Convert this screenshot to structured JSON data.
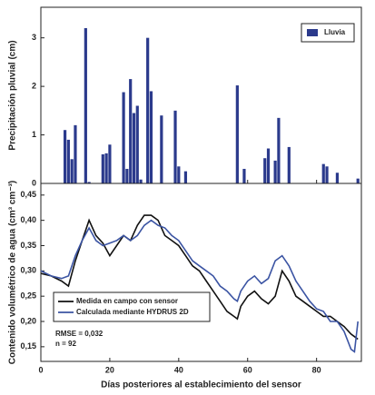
{
  "chart_data": [
    {
      "type": "bar",
      "ylabel": "Precipitación pluvial (cm)",
      "x": [
        7,
        8,
        9,
        10,
        13,
        14,
        18,
        19,
        20,
        24,
        25,
        26,
        27,
        28,
        29,
        31,
        32,
        35,
        39,
        40,
        42,
        57,
        59,
        65,
        66,
        68,
        69,
        72,
        82,
        83,
        86,
        92
      ],
      "series": [
        {
          "name": "Lluvia",
          "color": "#2b3a8c",
          "values": [
            1.1,
            0.9,
            0.5,
            1.2,
            3.2,
            0.03,
            0.6,
            0.62,
            0.8,
            1.88,
            0.3,
            2.15,
            1.45,
            1.6,
            0.08,
            3.0,
            1.9,
            1.4,
            1.5,
            0.35,
            0.25,
            2.02,
            0.3,
            0.52,
            0.72,
            0.47,
            1.35,
            0.75,
            0.4,
            0.35,
            0.22,
            0.1
          ]
        }
      ],
      "xlim": [
        0,
        93
      ],
      "xticks": [
        0,
        20,
        40,
        60,
        80
      ],
      "ylim": [
        0,
        3.63
      ],
      "yticks": [
        0,
        1,
        2,
        3
      ],
      "legend": "upper right"
    },
    {
      "type": "line",
      "xlabel": "Días posteriores al establecimiento del sensor",
      "ylabel": "Contenido volumétrico de agua (cm³ cm⁻³)",
      "x": [
        0,
        3,
        6,
        8,
        10,
        12,
        14,
        16,
        18,
        20,
        22,
        24,
        26,
        28,
        30,
        32,
        34,
        36,
        38,
        40,
        42,
        44,
        46,
        48,
        50,
        52,
        54,
        56,
        57,
        58,
        60,
        62,
        64,
        66,
        68,
        70,
        72,
        74,
        76,
        78,
        80,
        82,
        84,
        86,
        88,
        90,
        91,
        92
      ],
      "series": [
        {
          "name": "Medida en campo con sensor",
          "color": "#111111",
          "values": [
            0.295,
            0.29,
            0.28,
            0.27,
            0.32,
            0.36,
            0.4,
            0.37,
            0.355,
            0.33,
            0.35,
            0.37,
            0.36,
            0.39,
            0.41,
            0.41,
            0.4,
            0.37,
            0.36,
            0.35,
            0.33,
            0.31,
            0.3,
            0.28,
            0.26,
            0.24,
            0.22,
            0.21,
            0.205,
            0.23,
            0.25,
            0.26,
            0.245,
            0.235,
            0.25,
            0.3,
            0.28,
            0.25,
            0.24,
            0.23,
            0.22,
            0.21,
            0.21,
            0.2,
            0.19,
            0.175,
            0.17,
            0.165
          ]
        },
        {
          "name": "Calculada mediante HYDRUS 2D",
          "color": "#3b54a3",
          "values": [
            0.3,
            0.29,
            0.285,
            0.29,
            0.33,
            0.36,
            0.385,
            0.36,
            0.35,
            0.355,
            0.36,
            0.37,
            0.36,
            0.37,
            0.39,
            0.4,
            0.39,
            0.385,
            0.37,
            0.36,
            0.34,
            0.32,
            0.31,
            0.3,
            0.29,
            0.27,
            0.26,
            0.245,
            0.24,
            0.26,
            0.28,
            0.29,
            0.275,
            0.285,
            0.32,
            0.33,
            0.31,
            0.28,
            0.26,
            0.24,
            0.225,
            0.22,
            0.2,
            0.2,
            0.18,
            0.145,
            0.14,
            0.2
          ]
        }
      ],
      "xlim": [
        0,
        93
      ],
      "xticks": [
        0,
        20,
        40,
        60,
        80
      ],
      "ylim": [
        0.121,
        0.473
      ],
      "yticks": [
        {
          "value": 0.15,
          "label": "0,15"
        },
        {
          "value": 0.2,
          "label": "0,20"
        },
        {
          "value": 0.25,
          "label": "0,25"
        },
        {
          "value": 0.3,
          "label": "0,30"
        },
        {
          "value": 0.35,
          "label": "0,35"
        },
        {
          "value": 0.4,
          "label": "0,40"
        },
        {
          "value": 0.45,
          "label": "0,45"
        }
      ],
      "legend": "lower left",
      "annotations": [
        "RMSE = 0,032",
        "n = 92"
      ]
    }
  ]
}
